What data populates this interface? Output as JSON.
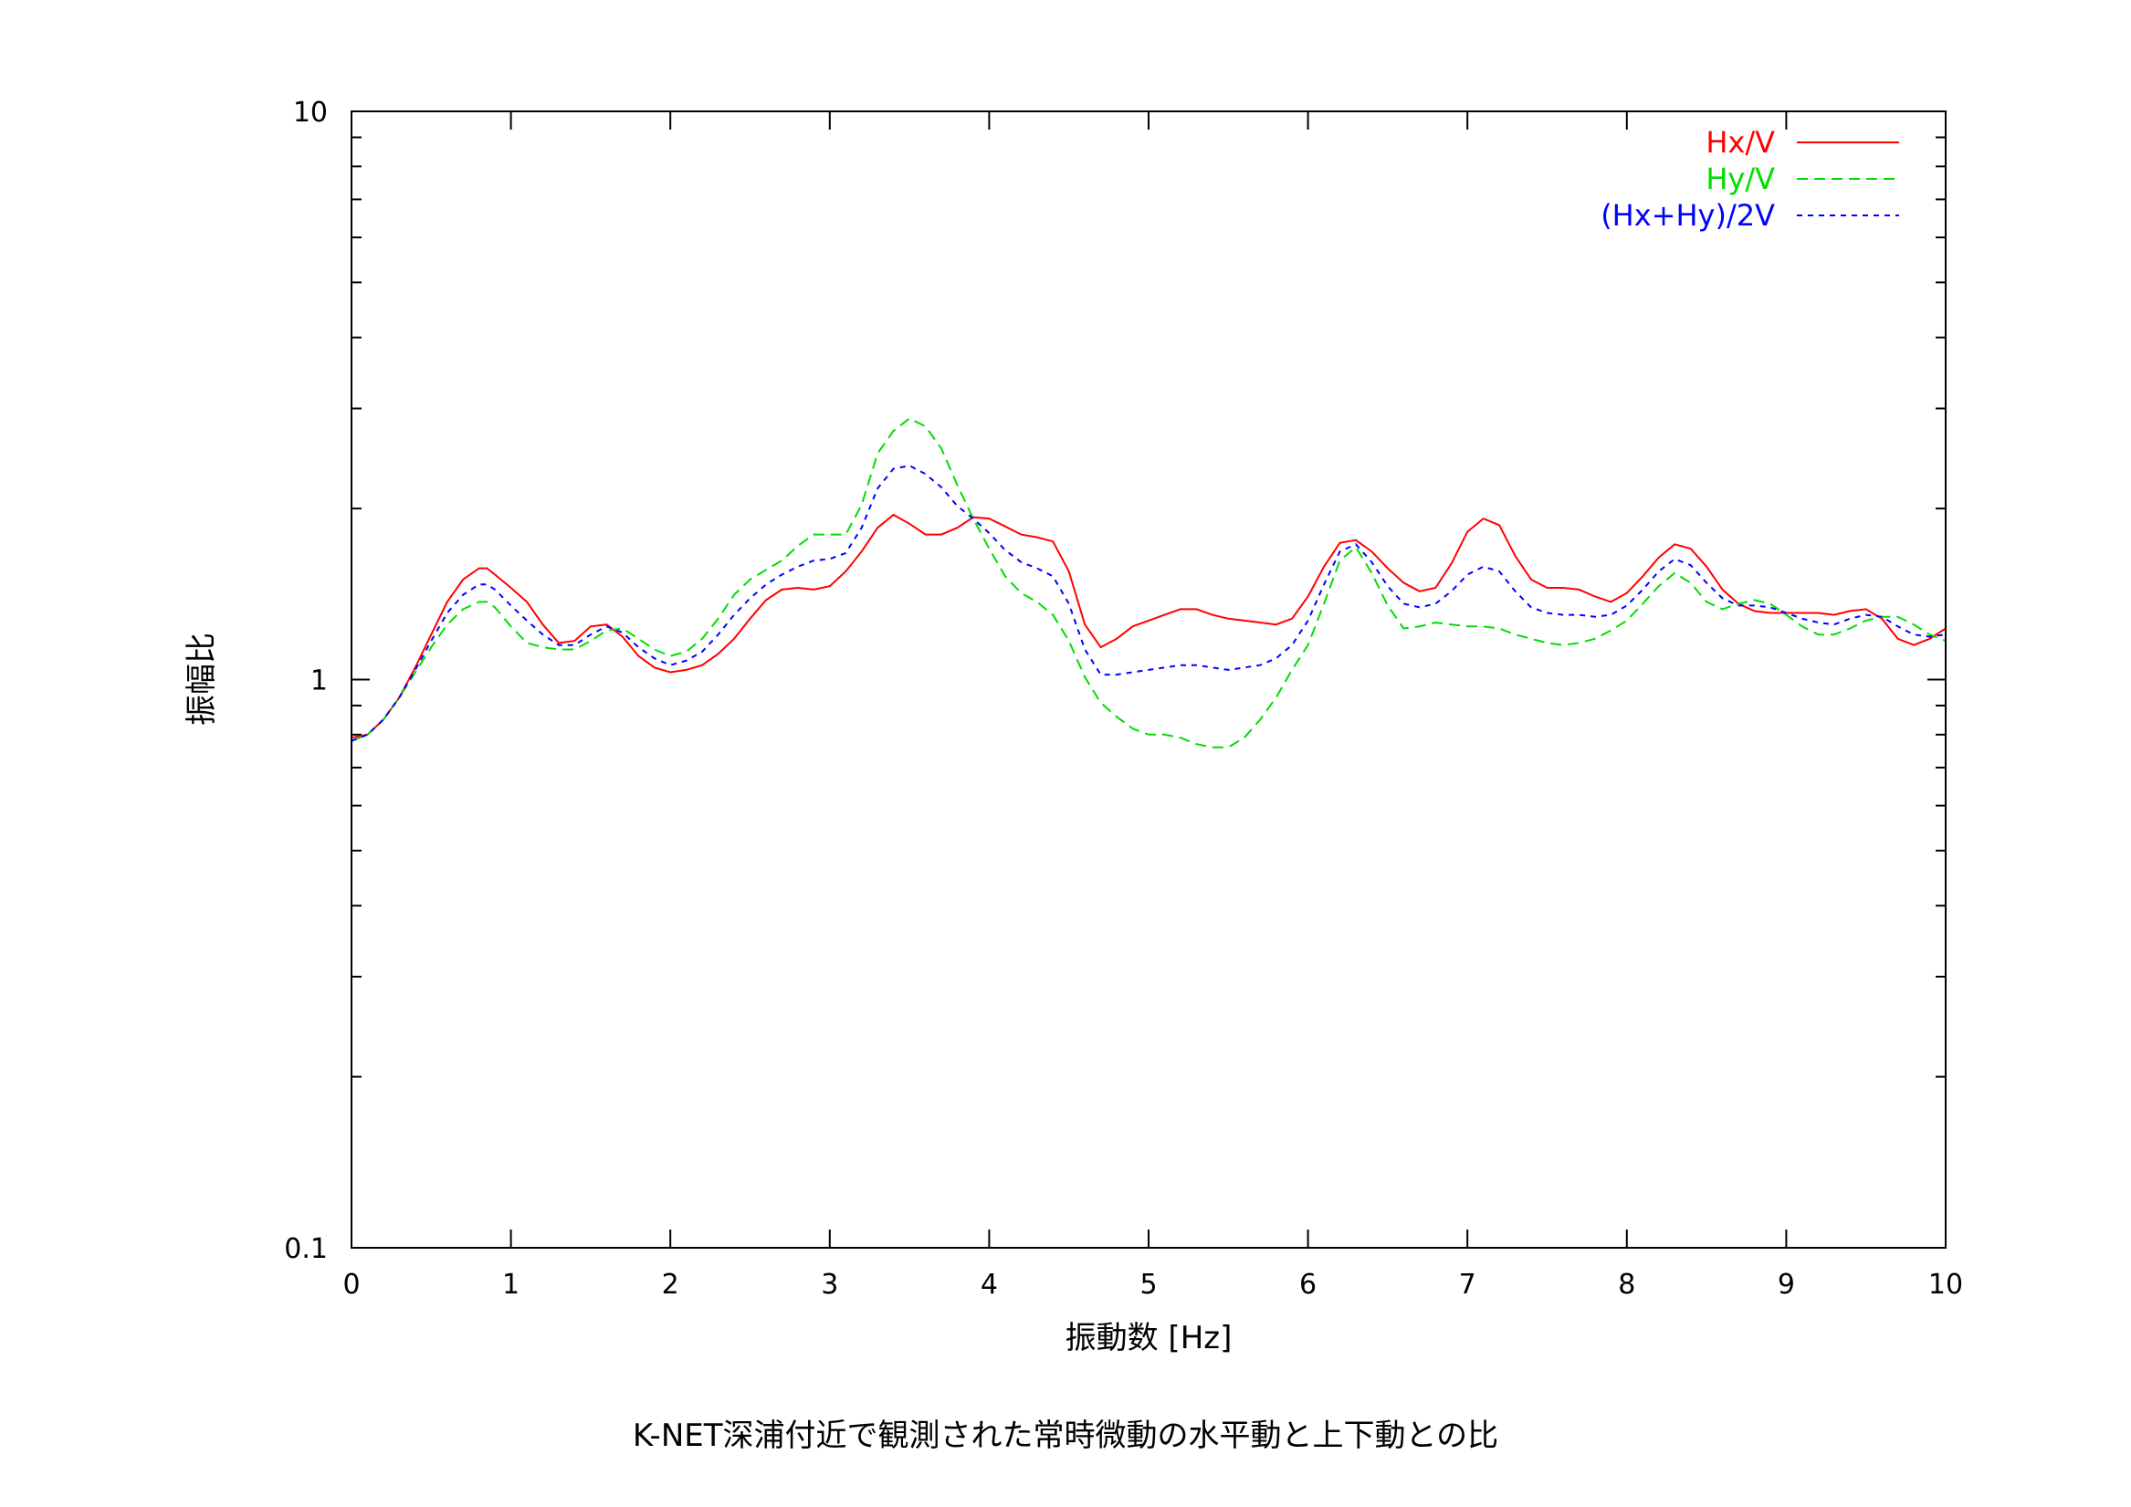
{
  "caption": "K-NET深浦付近で観測された常時微動の水平動と上下動との比",
  "chart_data": {
    "type": "line",
    "xlabel": "振動数 [Hz]",
    "ylabel": "振幅比",
    "xlim": [
      0,
      10
    ],
    "ylim": [
      0.1,
      10
    ],
    "yscale": "log",
    "xticks": [
      "0",
      "1",
      "2",
      "3",
      "4",
      "5",
      "6",
      "7",
      "8",
      "9",
      "10"
    ],
    "yticks": [
      "0.1",
      "1",
      "10"
    ],
    "legend_position": "top-right",
    "grid": false,
    "series": [
      {
        "name": "Hx/V",
        "color": "#ff0000",
        "dash": "solid",
        "x": [
          0,
          0.1,
          0.2,
          0.3,
          0.4,
          0.5,
          0.6,
          0.7,
          0.8,
          0.85,
          0.9,
          1.0,
          1.1,
          1.2,
          1.3,
          1.4,
          1.5,
          1.6,
          1.7,
          1.8,
          1.9,
          2.0,
          2.1,
          2.2,
          2.3,
          2.4,
          2.5,
          2.6,
          2.7,
          2.8,
          2.9,
          3.0,
          3.1,
          3.2,
          3.3,
          3.4,
          3.5,
          3.6,
          3.7,
          3.8,
          3.9,
          4.0,
          4.1,
          4.2,
          4.3,
          4.4,
          4.5,
          4.6,
          4.7,
          4.8,
          4.9,
          5.0,
          5.1,
          5.2,
          5.3,
          5.4,
          5.5,
          5.6,
          5.7,
          5.8,
          5.9,
          6.0,
          6.1,
          6.2,
          6.3,
          6.4,
          6.5,
          6.6,
          6.7,
          6.8,
          6.9,
          7.0,
          7.1,
          7.2,
          7.3,
          7.4,
          7.5,
          7.6,
          7.7,
          7.8,
          7.9,
          8.0,
          8.1,
          8.2,
          8.3,
          8.4,
          8.5,
          8.6,
          8.7,
          8.8,
          8.9,
          9.0,
          9.1,
          9.2,
          9.3,
          9.4,
          9.5,
          9.6,
          9.7,
          9.8,
          9.9,
          10.0
        ],
        "y": [
          0.79,
          0.8,
          0.85,
          0.93,
          1.05,
          1.2,
          1.37,
          1.5,
          1.57,
          1.57,
          1.53,
          1.45,
          1.37,
          1.25,
          1.16,
          1.17,
          1.24,
          1.25,
          1.19,
          1.1,
          1.05,
          1.03,
          1.04,
          1.06,
          1.11,
          1.18,
          1.28,
          1.38,
          1.44,
          1.45,
          1.44,
          1.46,
          1.55,
          1.68,
          1.85,
          1.95,
          1.88,
          1.8,
          1.8,
          1.85,
          1.93,
          1.92,
          1.86,
          1.8,
          1.78,
          1.75,
          1.55,
          1.25,
          1.14,
          1.18,
          1.24,
          1.27,
          1.3,
          1.33,
          1.33,
          1.3,
          1.28,
          1.27,
          1.26,
          1.25,
          1.28,
          1.4,
          1.58,
          1.74,
          1.76,
          1.68,
          1.57,
          1.48,
          1.43,
          1.45,
          1.6,
          1.82,
          1.92,
          1.87,
          1.65,
          1.5,
          1.45,
          1.45,
          1.44,
          1.4,
          1.37,
          1.42,
          1.52,
          1.64,
          1.73,
          1.7,
          1.58,
          1.44,
          1.36,
          1.32,
          1.31,
          1.31,
          1.31,
          1.31,
          1.3,
          1.32,
          1.33,
          1.28,
          1.18,
          1.15,
          1.18,
          1.23
        ]
      },
      {
        "name": "Hy/V",
        "color": "#00dd00",
        "dash": "long",
        "x": [
          0,
          0.1,
          0.2,
          0.3,
          0.4,
          0.5,
          0.6,
          0.7,
          0.8,
          0.85,
          0.9,
          1.0,
          1.1,
          1.2,
          1.3,
          1.4,
          1.5,
          1.6,
          1.7,
          1.8,
          1.9,
          2.0,
          2.1,
          2.2,
          2.3,
          2.4,
          2.5,
          2.6,
          2.7,
          2.8,
          2.9,
          3.0,
          3.1,
          3.2,
          3.3,
          3.4,
          3.5,
          3.6,
          3.7,
          3.8,
          3.9,
          4.0,
          4.1,
          4.2,
          4.3,
          4.4,
          4.5,
          4.6,
          4.7,
          4.8,
          4.9,
          5.0,
          5.1,
          5.2,
          5.3,
          5.4,
          5.5,
          5.6,
          5.7,
          5.8,
          5.9,
          6.0,
          6.1,
          6.2,
          6.3,
          6.4,
          6.5,
          6.6,
          6.7,
          6.8,
          6.9,
          7.0,
          7.1,
          7.2,
          7.3,
          7.4,
          7.5,
          7.6,
          7.7,
          7.8,
          7.9,
          8.0,
          8.1,
          8.2,
          8.3,
          8.4,
          8.5,
          8.6,
          8.7,
          8.8,
          8.9,
          9.0,
          9.1,
          9.2,
          9.3,
          9.4,
          9.5,
          9.6,
          9.7,
          9.8,
          9.9,
          10.0
        ],
        "y": [
          0.78,
          0.8,
          0.85,
          0.93,
          1.03,
          1.14,
          1.25,
          1.33,
          1.37,
          1.37,
          1.34,
          1.24,
          1.16,
          1.14,
          1.13,
          1.13,
          1.17,
          1.22,
          1.23,
          1.18,
          1.13,
          1.1,
          1.12,
          1.18,
          1.28,
          1.41,
          1.5,
          1.56,
          1.62,
          1.72,
          1.8,
          1.8,
          1.8,
          2.03,
          2.5,
          2.74,
          2.88,
          2.79,
          2.55,
          2.2,
          1.92,
          1.7,
          1.52,
          1.42,
          1.37,
          1.3,
          1.17,
          1.01,
          0.91,
          0.86,
          0.82,
          0.8,
          0.8,
          0.79,
          0.77,
          0.76,
          0.76,
          0.79,
          0.85,
          0.93,
          1.04,
          1.15,
          1.36,
          1.62,
          1.71,
          1.54,
          1.35,
          1.23,
          1.24,
          1.26,
          1.25,
          1.24,
          1.24,
          1.23,
          1.2,
          1.18,
          1.16,
          1.15,
          1.16,
          1.18,
          1.22,
          1.27,
          1.36,
          1.46,
          1.54,
          1.48,
          1.37,
          1.33,
          1.36,
          1.38,
          1.36,
          1.3,
          1.24,
          1.2,
          1.2,
          1.23,
          1.27,
          1.29,
          1.29,
          1.25,
          1.2,
          1.17
        ]
      },
      {
        "name": "(Hx+Hy)/2V",
        "color": "#0000ff",
        "dash": "short",
        "x": [
          0,
          0.1,
          0.2,
          0.3,
          0.4,
          0.5,
          0.6,
          0.7,
          0.8,
          0.85,
          0.9,
          1.0,
          1.1,
          1.2,
          1.3,
          1.4,
          1.5,
          1.6,
          1.7,
          1.8,
          1.9,
          2.0,
          2.1,
          2.2,
          2.3,
          2.4,
          2.5,
          2.6,
          2.7,
          2.8,
          2.9,
          3.0,
          3.1,
          3.2,
          3.3,
          3.4,
          3.5,
          3.6,
          3.7,
          3.8,
          3.9,
          4.0,
          4.1,
          4.2,
          4.3,
          4.4,
          4.5,
          4.6,
          4.7,
          4.8,
          4.9,
          5.0,
          5.1,
          5.2,
          5.3,
          5.4,
          5.5,
          5.6,
          5.7,
          5.8,
          5.9,
          6.0,
          6.1,
          6.2,
          6.3,
          6.4,
          6.5,
          6.6,
          6.7,
          6.8,
          6.9,
          7.0,
          7.1,
          7.2,
          7.3,
          7.4,
          7.5,
          7.6,
          7.7,
          7.8,
          7.9,
          8.0,
          8.1,
          8.2,
          8.3,
          8.4,
          8.5,
          8.6,
          8.7,
          8.8,
          8.9,
          9.0,
          9.1,
          9.2,
          9.3,
          9.4,
          9.5,
          9.6,
          9.7,
          9.8,
          9.9,
          10.0
        ],
        "y": [
          0.78,
          0.8,
          0.85,
          0.93,
          1.04,
          1.17,
          1.31,
          1.41,
          1.47,
          1.47,
          1.44,
          1.35,
          1.27,
          1.2,
          1.15,
          1.15,
          1.2,
          1.24,
          1.21,
          1.14,
          1.09,
          1.06,
          1.08,
          1.12,
          1.2,
          1.3,
          1.39,
          1.47,
          1.53,
          1.58,
          1.62,
          1.63,
          1.67,
          1.85,
          2.17,
          2.35,
          2.38,
          2.3,
          2.18,
          2.02,
          1.92,
          1.81,
          1.69,
          1.61,
          1.57,
          1.52,
          1.36,
          1.13,
          1.02,
          1.02,
          1.03,
          1.04,
          1.05,
          1.06,
          1.06,
          1.05,
          1.04,
          1.05,
          1.06,
          1.09,
          1.15,
          1.27,
          1.47,
          1.68,
          1.73,
          1.61,
          1.46,
          1.36,
          1.34,
          1.36,
          1.43,
          1.53,
          1.58,
          1.55,
          1.43,
          1.34,
          1.31,
          1.3,
          1.3,
          1.29,
          1.3,
          1.35,
          1.44,
          1.55,
          1.63,
          1.59,
          1.48,
          1.39,
          1.35,
          1.35,
          1.34,
          1.31,
          1.28,
          1.26,
          1.25,
          1.28,
          1.3,
          1.29,
          1.24,
          1.2,
          1.19,
          1.2
        ]
      }
    ]
  }
}
